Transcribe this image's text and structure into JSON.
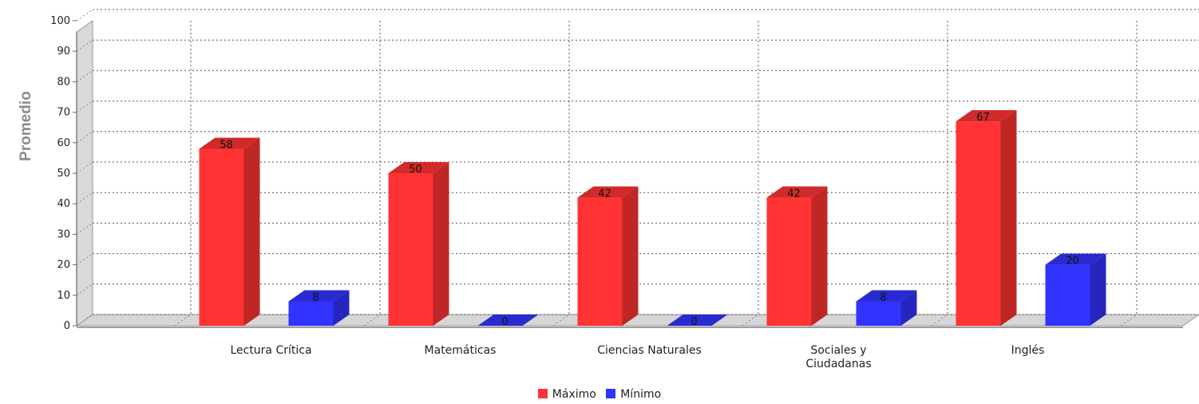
{
  "chart_data": {
    "type": "bar",
    "title": "",
    "xlabel": "",
    "ylabel": "Promedio",
    "ylim": [
      0,
      100
    ],
    "yticks": [
      0,
      10,
      20,
      30,
      40,
      50,
      60,
      70,
      80,
      90,
      100
    ],
    "categories": [
      "Lectura Crítica",
      "Matemáticas",
      "Ciencias Naturales",
      "Sociales y\nCiudadanas",
      "Inglés"
    ],
    "series": [
      {
        "name": "Máximo",
        "color": "#ff3333",
        "values": [
          58,
          50,
          42,
          42,
          67
        ]
      },
      {
        "name": "Mínimo",
        "color": "#3333ff",
        "values": [
          8,
          0,
          0,
          8,
          20
        ]
      }
    ],
    "grid": true,
    "legend_position": "bottom-center",
    "style": "3d-bars"
  }
}
